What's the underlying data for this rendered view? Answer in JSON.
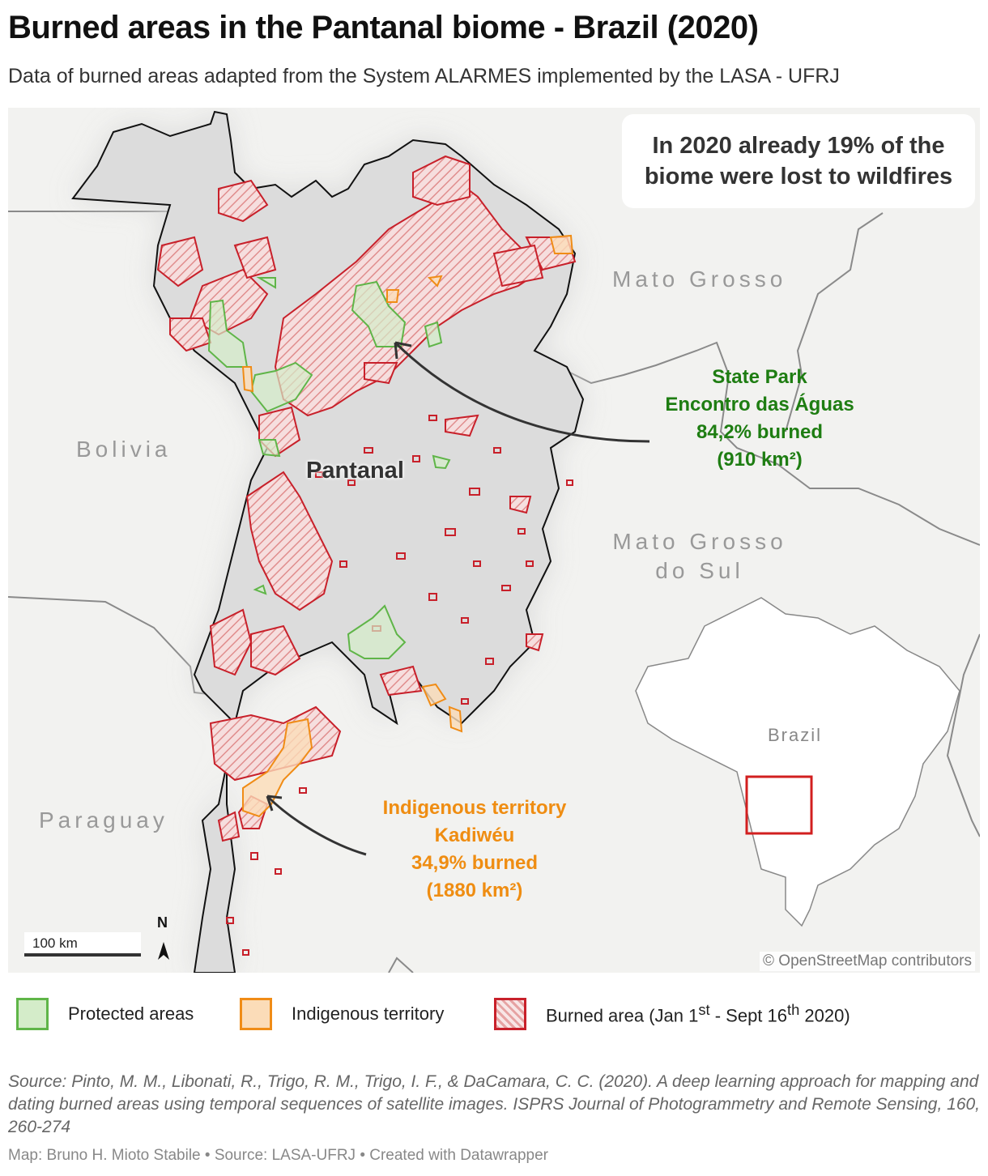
{
  "title": "Burned areas in the Pantanal biome - Brazil (2020)",
  "subtitle": "Data of burned areas adapted from the System ALARMES implemented by the LASA - UFRJ",
  "map": {
    "callout": "In 2020 already 19% of the biome were lost to wildfires",
    "region_labels": {
      "mato_grosso": "Mato Grosso",
      "bolivia": "Bolivia",
      "mato_grosso_do_sul_1": "Mato Grosso",
      "mato_grosso_do_sul_2": "do Sul",
      "paraguay": "Paraguay",
      "pantanal": "Pantanal"
    },
    "state_park": {
      "line1": "State Park",
      "line2": "Encontro das Águas",
      "line3": "84,2% burned",
      "line4": "(910 km²)"
    },
    "indigenous": {
      "line1": "Indigenous territory",
      "line2": "Kadiwéu",
      "line3": "34,9% burned",
      "line4": "(1880 km²)"
    },
    "inset_label": "Brazil",
    "scale_label": "100 km",
    "north_label": "N",
    "attribution": "© OpenStreetMap contributors"
  },
  "legend": {
    "protected": "Protected areas",
    "indigenous": "Indigenous territory",
    "burned_prefix": "Burned area (Jan 1",
    "burned_sup1": "st",
    "burned_mid": " - Sept 16",
    "burned_sup2": "th",
    "burned_suffix": " 2020)"
  },
  "source": "Source: Pinto, M. M., Libonati, R., Trigo, R. M., Trigo, I. F., & DaCamara, C. C. (2020). A deep learning approach for mapping and dating burned areas using temporal sequences of satellite images. ISPRS Journal of Photogrammetry and Remote Sensing, 160, 260-274",
  "footer": "Map: Bruno H. Mioto Stabile • Source: LASA-UFRJ • Created with Datawrapper",
  "colors": {
    "protected_fill": "#d4ecc9",
    "protected_stroke": "#5fb548",
    "indigenous_fill": "#fbdcb8",
    "indigenous_stroke": "#f08c16",
    "burned_stroke": "#c8202a",
    "state_park_text": "#1e7d12",
    "indigenous_text": "#ef8d12"
  }
}
